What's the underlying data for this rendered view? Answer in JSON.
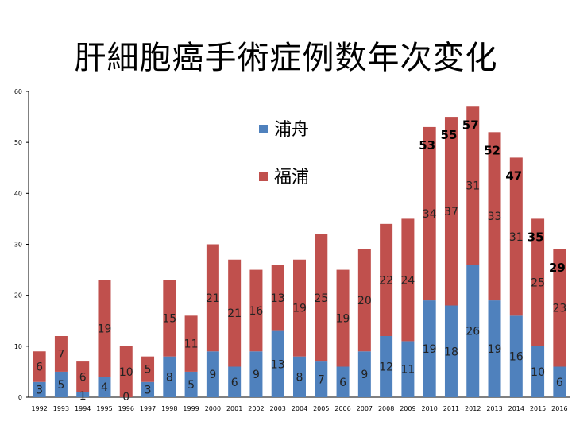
{
  "title": "肝細胞癌手術症例数年次変化",
  "chart_data": {
    "type": "bar",
    "stacked": true,
    "categories": [
      "1992",
      "1993",
      "1994",
      "1995",
      "1996",
      "1997",
      "1998",
      "1999",
      "2000",
      "2001",
      "2002",
      "2003",
      "2004",
      "2005",
      "2006",
      "2007",
      "2008",
      "2009",
      "2010",
      "2011",
      "2012",
      "2013",
      "2014",
      "2015",
      "2016"
    ],
    "series": [
      {
        "name": "浦舟",
        "color": "#4f81bd",
        "values": [
          3,
          5,
          1,
          4,
          0,
          3,
          8,
          5,
          9,
          6,
          9,
          13,
          8,
          7,
          6,
          9,
          12,
          11,
          19,
          18,
          26,
          19,
          16,
          10,
          6
        ]
      },
      {
        "name": "福浦",
        "color": "#c0504d",
        "values": [
          6,
          7,
          6,
          19,
          10,
          5,
          15,
          11,
          21,
          21,
          16,
          13,
          19,
          25,
          19,
          20,
          22,
          24,
          34,
          37,
          31,
          33,
          31,
          25,
          23
        ]
      }
    ],
    "totals": [
      {
        "category": "2010",
        "value": "53"
      },
      {
        "category": "2011",
        "value": "55"
      },
      {
        "category": "2012",
        "value": "57"
      },
      {
        "category": "2013",
        "value": "52"
      },
      {
        "category": "2014",
        "value": "47"
      },
      {
        "category": "2015",
        "value": "35"
      },
      {
        "category": "2016",
        "value": "29"
      }
    ],
    "ylim": [
      0,
      60
    ],
    "yticks": [
      "0",
      "10",
      "20",
      "30",
      "40",
      "50",
      "60"
    ],
    "legend_position": "top-center"
  }
}
